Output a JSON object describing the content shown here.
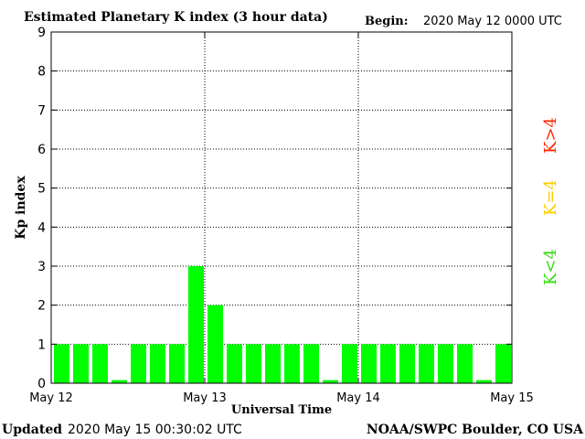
{
  "header": {
    "title": "Estimated Planetary K index (3 hour data)",
    "begin_label": "Begin:",
    "begin_value": "2020 May 12 0000 UTC"
  },
  "footer": {
    "updated_label": "Updated",
    "updated_value": "2020 May 15 00:30:02 UTC",
    "credit": "NOAA/SWPC Boulder, CO USA"
  },
  "legend": {
    "high": "K>4",
    "mid": "K=4",
    "low": "K<4"
  },
  "colors": {
    "low": "#00ff00",
    "mid": "#ffcc00",
    "high": "#ff2a00",
    "axes": "#000000",
    "grid": "#000000",
    "background": "#ffffff"
  },
  "chart_data": {
    "type": "bar",
    "title": "Estimated Planetary K index (3 hour data)",
    "xlabel": "Universal Time",
    "ylabel": "Kp index",
    "ylim": [
      0,
      9
    ],
    "yticks": [
      0,
      1,
      2,
      3,
      4,
      5,
      6,
      7,
      8,
      9
    ],
    "xticks": [
      {
        "label": "May 12",
        "day_index": 0
      },
      {
        "label": "May 13",
        "day_index": 1
      },
      {
        "label": "May 14",
        "day_index": 2
      },
      {
        "label": "May 15",
        "day_index": 3
      }
    ],
    "grid": "dotted at each day boundary and each integer Kp",
    "interval_hours": 3,
    "categories": [
      "May 12 00",
      "May 12 03",
      "May 12 06",
      "May 12 09",
      "May 12 12",
      "May 12 15",
      "May 12 18",
      "May 12 21",
      "May 13 00",
      "May 13 03",
      "May 13 06",
      "May 13 09",
      "May 13 12",
      "May 13 15",
      "May 13 18",
      "May 13 21",
      "May 14 00",
      "May 14 03",
      "May 14 06",
      "May 14 09",
      "May 14 12",
      "May 14 15",
      "May 14 18",
      "May 14 21"
    ],
    "values": [
      1,
      1,
      1,
      0,
      1,
      1,
      1,
      3,
      2,
      1,
      1,
      1,
      1,
      1,
      0,
      1,
      1,
      1,
      1,
      1,
      1,
      1,
      0,
      1
    ]
  }
}
